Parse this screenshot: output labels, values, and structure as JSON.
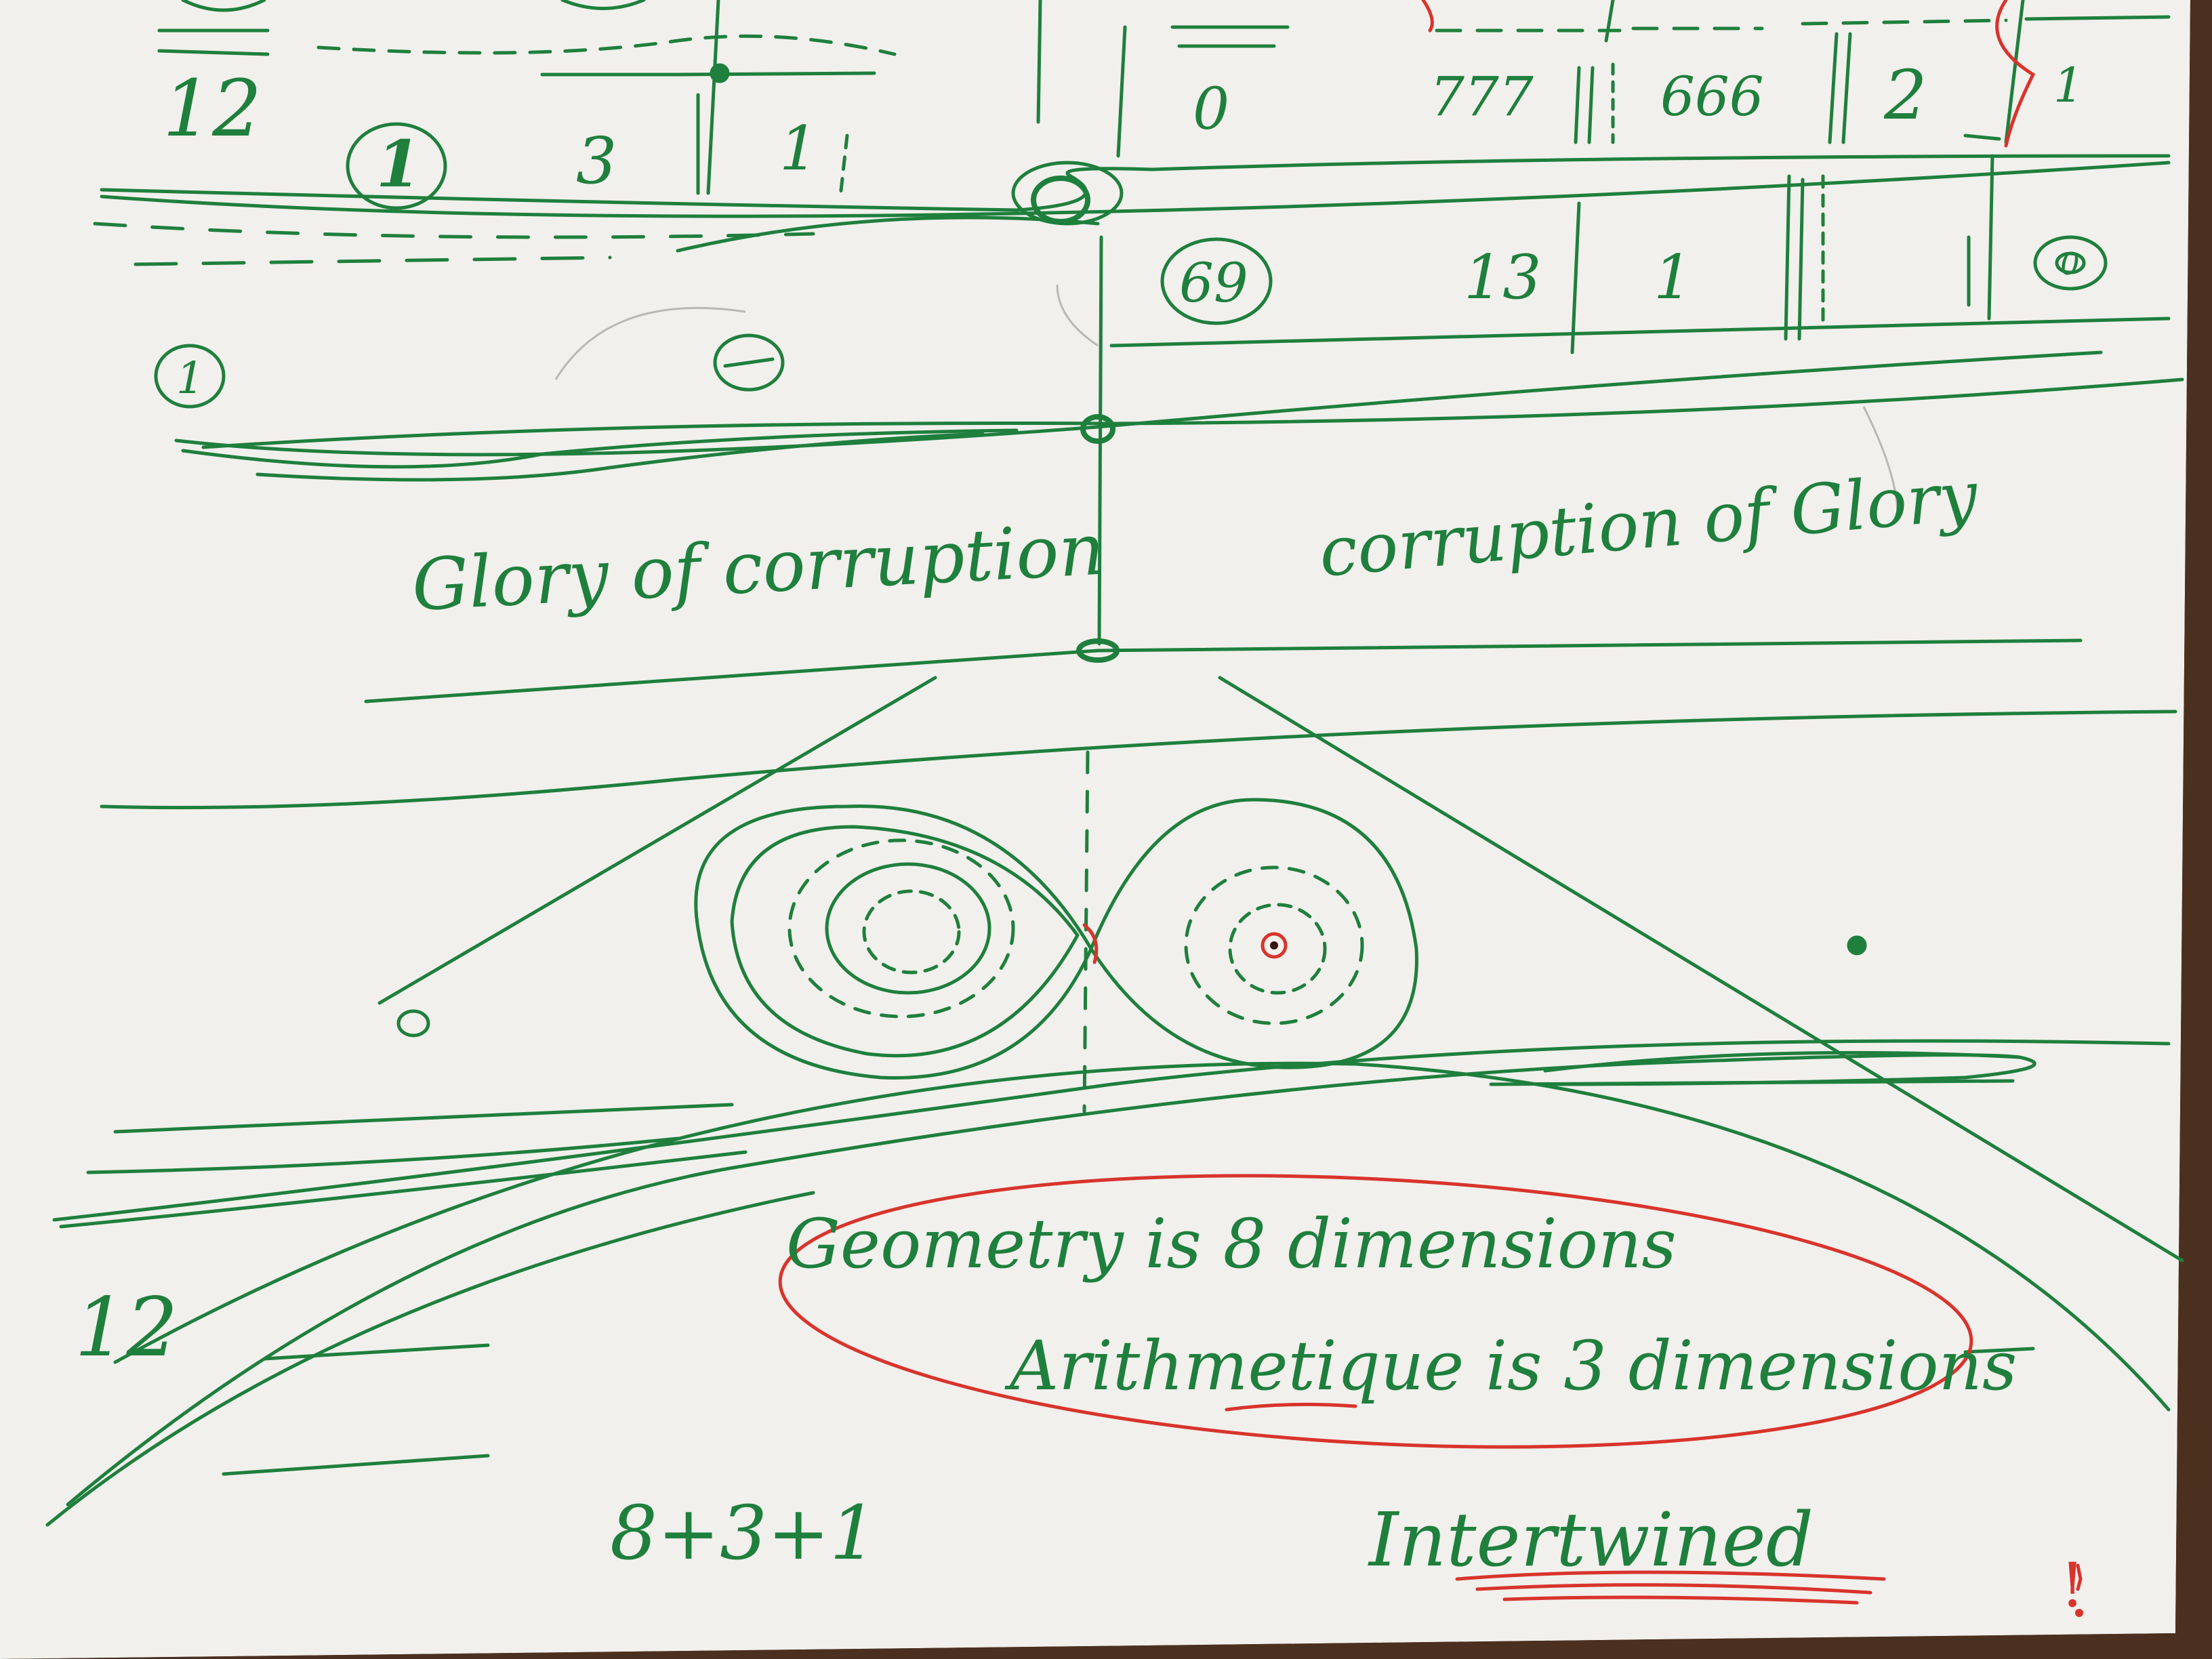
{
  "colors": {
    "table": "#5a3a26",
    "paper": "#f1f0ec",
    "green_ink": "#1f7f3d",
    "red_ink": "#d8342c",
    "pencil": "#b9b8b3"
  },
  "top_row": {
    "n12": "12",
    "n1_circled": "1",
    "n3": "3",
    "n1": "1",
    "n0": "0",
    "n777": "777",
    "n666": "666",
    "n2": "2",
    "n1_right": "1"
  },
  "second_row": {
    "n69": "69",
    "n13": "13",
    "n1": "1",
    "n1_left_circled": "1",
    "n0_circled": "0"
  },
  "phrases": {
    "left": "Glory of corruption",
    "right": "corruption of Glory"
  },
  "notes": {
    "geometry": "Geometry is 8 dimensions",
    "arithmetic": "Arithmetique is 3 dimensions",
    "intertwined": "Intertwined",
    "exclaim": "!",
    "sum": "8+3+1",
    "twelve": "12"
  }
}
